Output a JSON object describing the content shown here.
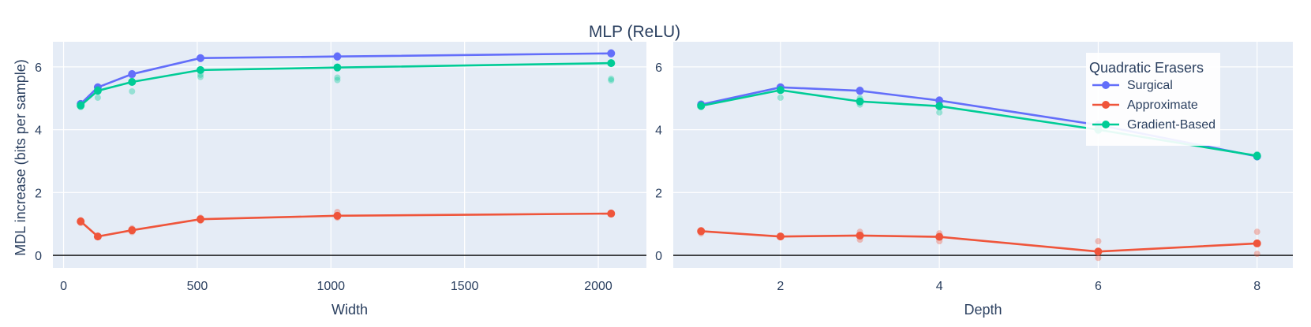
{
  "title": "MLP (ReLU)",
  "ylabel": "MDL increase (bits per sample)",
  "legend": {
    "title": "Quadratic Erasers",
    "placement": "top-right of right panel"
  },
  "colors": {
    "Surgical": "#636efa",
    "Approximate": "#ef553b",
    "Gradient-Based": "#00cc96",
    "plot_bg": "#e5ecf6",
    "grid": "#ffffff",
    "zero_line": "#000000"
  },
  "chart_data": [
    {
      "type": "line",
      "xlabel": "Width",
      "xlim": [
        -40,
        2180
      ],
      "ylim": [
        -0.4,
        6.8
      ],
      "xticks": [
        0,
        500,
        1000,
        1500,
        2000
      ],
      "yticks": [
        0,
        2,
        4,
        6
      ],
      "grid": true,
      "x": [
        64,
        128,
        256,
        512,
        1024,
        2048
      ],
      "series": [
        {
          "name": "Surgical",
          "values": [
            4.82,
            5.35,
            5.77,
            6.28,
            6.33,
            6.43
          ],
          "samples": [
            [
              64,
              4.8
            ],
            [
              64,
              4.84
            ],
            [
              128,
              5.3
            ],
            [
              128,
              5.38
            ],
            [
              256,
              5.72
            ],
            [
              256,
              5.8
            ],
            [
              512,
              6.25
            ],
            [
              512,
              6.3
            ],
            [
              1024,
              6.3
            ],
            [
              1024,
              6.38
            ],
            [
              2048,
              6.4
            ],
            [
              2048,
              6.47
            ]
          ]
        },
        {
          "name": "Approximate",
          "values": [
            1.08,
            0.6,
            0.8,
            1.15,
            1.26,
            1.33
          ],
          "samples": [
            [
              64,
              1.03
            ],
            [
              64,
              1.12
            ],
            [
              128,
              0.58
            ],
            [
              128,
              0.62
            ],
            [
              256,
              0.74
            ],
            [
              256,
              0.86
            ],
            [
              512,
              1.1
            ],
            [
              512,
              1.2
            ],
            [
              1024,
              1.2
            ],
            [
              1024,
              1.38
            ],
            [
              2048,
              1.3
            ],
            [
              2048,
              1.36
            ]
          ]
        },
        {
          "name": "Gradient-Based",
          "values": [
            4.77,
            5.24,
            5.52,
            5.9,
            5.98,
            6.12
          ],
          "samples": [
            [
              64,
              4.72
            ],
            [
              64,
              4.82
            ],
            [
              128,
              5.02
            ],
            [
              128,
              5.3
            ],
            [
              256,
              5.22
            ],
            [
              256,
              5.55
            ],
            [
              512,
              5.68
            ],
            [
              512,
              5.75
            ],
            [
              1024,
              5.58
            ],
            [
              1024,
              5.66
            ],
            [
              2048,
              5.57
            ],
            [
              2048,
              5.62
            ]
          ]
        }
      ]
    },
    {
      "type": "line",
      "xlabel": "Depth",
      "xlim": [
        0.65,
        8.45
      ],
      "ylim": [
        -0.4,
        6.8
      ],
      "xticks": [
        2,
        4,
        6,
        8
      ],
      "yticks": [
        0,
        2,
        4,
        6
      ],
      "grid": true,
      "x": [
        1,
        2,
        3,
        4,
        6,
        8
      ],
      "series": [
        {
          "name": "Surgical",
          "values": [
            4.8,
            5.35,
            5.24,
            4.93,
            4.15,
            3.15
          ],
          "samples": [
            [
              1,
              4.78
            ],
            [
              1,
              4.84
            ],
            [
              2,
              5.3
            ],
            [
              2,
              5.38
            ],
            [
              3,
              5.2
            ],
            [
              3,
              5.28
            ],
            [
              4,
              4.9
            ],
            [
              4,
              4.97
            ],
            [
              6,
              4.12
            ],
            [
              6,
              4.2
            ],
            [
              8,
              3.12
            ],
            [
              8,
              3.2
            ]
          ]
        },
        {
          "name": "Approximate",
          "values": [
            0.77,
            0.6,
            0.63,
            0.59,
            0.12,
            0.38
          ],
          "samples": [
            [
              1,
              0.7
            ],
            [
              1,
              0.8
            ],
            [
              2,
              0.58
            ],
            [
              2,
              0.62
            ],
            [
              3,
              0.5
            ],
            [
              3,
              0.75
            ],
            [
              4,
              0.45
            ],
            [
              4,
              0.7
            ],
            [
              6,
              0.45
            ],
            [
              6,
              -0.08
            ],
            [
              8,
              0.75
            ],
            [
              8,
              0.05
            ]
          ]
        },
        {
          "name": "Gradient-Based",
          "values": [
            4.76,
            5.26,
            4.9,
            4.75,
            4.0,
            3.17
          ],
          "samples": [
            [
              1,
              4.72
            ],
            [
              1,
              4.8
            ],
            [
              2,
              5.02
            ],
            [
              2,
              5.3
            ],
            [
              3,
              4.8
            ],
            [
              3,
              5.0
            ],
            [
              4,
              4.55
            ],
            [
              4,
              4.8
            ],
            [
              6,
              3.95
            ],
            [
              6,
              4.05
            ],
            [
              8,
              3.12
            ],
            [
              8,
              3.22
            ]
          ]
        }
      ]
    }
  ]
}
